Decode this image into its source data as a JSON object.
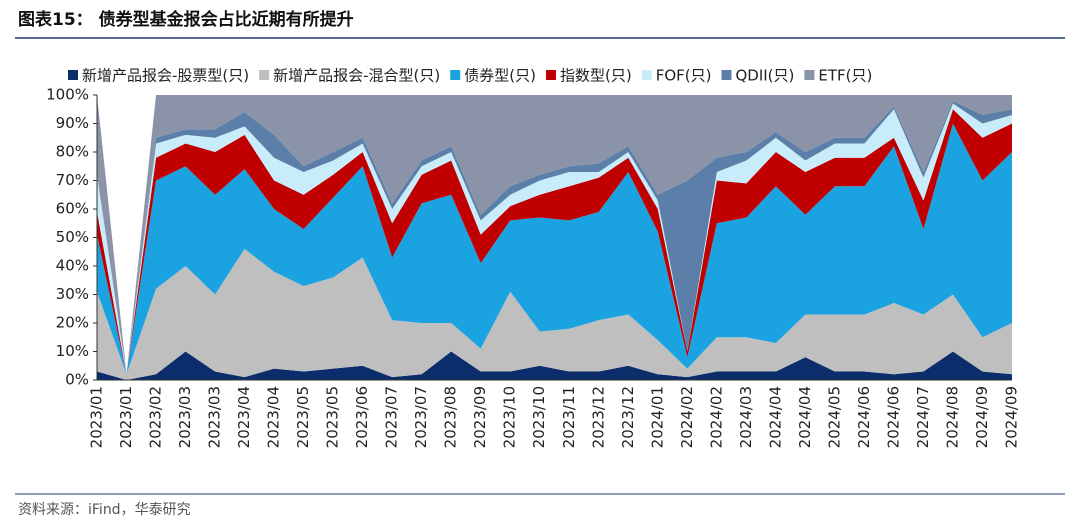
{
  "chart_data": {
    "type": "stacked_area",
    "title": "图表15： 债券型基金报会占比近期有所提升",
    "source": "资料来源：iFind，华泰研究",
    "categories": [
      "2023/01",
      "2023/01",
      "2023/02",
      "2023/03",
      "2023/03",
      "2023/04",
      "2023/04",
      "2023/05",
      "2023/05",
      "2023/06",
      "2023/07",
      "2023/07",
      "2023/08",
      "2023/09",
      "2023/10",
      "2023/10",
      "2023/11",
      "2023/12",
      "2023/12",
      "2024/01",
      "2024/02",
      "2024/02",
      "2024/03",
      "2024/04",
      "2024/04",
      "2024/05",
      "2024/06",
      "2024/06",
      "2024/07",
      "2024/08",
      "2024/09",
      "2024/09"
    ],
    "series": [
      {
        "name": "新增产品报会-股票型(只)",
        "color": "#0b2d6b",
        "values": [
          3,
          0,
          2,
          10,
          3,
          1,
          4,
          3,
          4,
          5,
          1,
          2,
          10,
          3,
          3,
          5,
          3,
          3,
          5,
          2,
          1,
          3,
          3,
          3,
          8,
          3,
          3,
          2,
          3,
          10,
          3,
          2
        ]
      },
      {
        "name": "新增产品报会-混合型(只)",
        "color": "#bfbfbf",
        "values": [
          28,
          2,
          30,
          30,
          27,
          45,
          34,
          30,
          32,
          38,
          20,
          18,
          10,
          8,
          28,
          12,
          15,
          18,
          18,
          12,
          3,
          12,
          12,
          10,
          15,
          20,
          20,
          25,
          20,
          20,
          12,
          18
        ]
      },
      {
        "name": "债券型(只)",
        "color": "#1aa3e0",
        "values": [
          20,
          0,
          38,
          35,
          35,
          28,
          22,
          20,
          28,
          32,
          22,
          42,
          45,
          30,
          25,
          40,
          38,
          38,
          50,
          38,
          4,
          40,
          42,
          55,
          35,
          45,
          45,
          55,
          30,
          60,
          55,
          60
        ]
      },
      {
        "name": "指数型(只)",
        "color": "#c00000",
        "values": [
          8,
          0,
          8,
          8,
          15,
          12,
          10,
          12,
          8,
          5,
          12,
          10,
          12,
          10,
          5,
          8,
          12,
          12,
          5,
          8,
          2,
          15,
          12,
          12,
          15,
          10,
          10,
          3,
          10,
          5,
          15,
          10
        ]
      },
      {
        "name": "FOF(只)",
        "color": "#c8ecf9",
        "values": [
          13,
          0,
          5,
          3,
          5,
          3,
          8,
          8,
          5,
          3,
          5,
          3,
          3,
          5,
          4,
          5,
          5,
          2,
          2,
          3,
          0,
          3,
          8,
          5,
          4,
          5,
          5,
          10,
          8,
          2,
          5,
          3
        ]
      },
      {
        "name": "QDII(只)",
        "color": "#5b7fa8",
        "values": [
          0,
          0,
          2,
          2,
          3,
          5,
          8,
          2,
          3,
          2,
          2,
          2,
          2,
          2,
          3,
          2,
          2,
          3,
          2,
          2,
          60,
          5,
          3,
          2,
          3,
          2,
          2,
          1,
          2,
          1,
          3,
          2
        ]
      },
      {
        "name": "ETF(只)",
        "color": "#8a93a8",
        "values": [
          28,
          0,
          15,
          12,
          12,
          6,
          14,
          25,
          20,
          15,
          38,
          23,
          18,
          42,
          32,
          28,
          25,
          24,
          18,
          35,
          30,
          22,
          20,
          13,
          20,
          15,
          15,
          4,
          27,
          2,
          7,
          5
        ]
      }
    ],
    "ylim": [
      0,
      100
    ],
    "yticks": [
      {
        "value": 0,
        "label": "0%"
      },
      {
        "value": 10,
        "label": "10%"
      },
      {
        "value": 20,
        "label": "20%"
      },
      {
        "value": 30,
        "label": "30%"
      },
      {
        "value": 40,
        "label": "40%"
      },
      {
        "value": 50,
        "label": "50%"
      },
      {
        "value": 60,
        "label": "60%"
      },
      {
        "value": 70,
        "label": "70%"
      },
      {
        "value": 80,
        "label": "80%"
      },
      {
        "value": 90,
        "label": "90%"
      },
      {
        "value": 100,
        "label": "100%"
      }
    ]
  }
}
